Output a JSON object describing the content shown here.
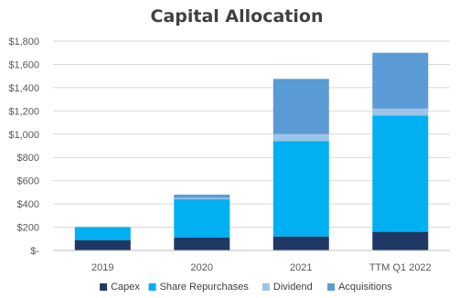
{
  "chart_data": {
    "type": "bar",
    "stacked": true,
    "title": "Capital Allocation",
    "xlabel": "",
    "ylabel": "",
    "categories": [
      "2019",
      "2020",
      "2021",
      "TTM Q1 2022"
    ],
    "series": [
      {
        "name": "Capex",
        "color": "#203864",
        "values": [
          90,
          110,
          120,
          160
        ]
      },
      {
        "name": "Share Repurchases",
        "color": "#00b0f0",
        "values": [
          110,
          330,
          820,
          1000
        ]
      },
      {
        "name": "Dividend",
        "color": "#9dc3e6",
        "values": [
          5,
          10,
          60,
          60
        ]
      },
      {
        "name": "Acquisitions",
        "color": "#5b9bd5",
        "values": [
          0,
          30,
          475,
          480
        ]
      }
    ],
    "ylim": [
      0,
      1800
    ],
    "yticks": [
      0,
      200,
      400,
      600,
      800,
      1000,
      1200,
      1400,
      1600,
      1800
    ],
    "ytick_labels": [
      "$-",
      "$200",
      "$400",
      "$600",
      "$800",
      "$1,000",
      "$1,200",
      "$1,400",
      "$1,600",
      "$1,800"
    ],
    "grid": true,
    "legend_position": "bottom"
  }
}
